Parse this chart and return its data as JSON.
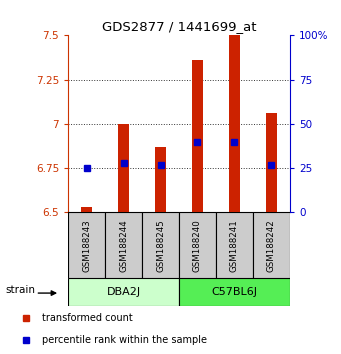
{
  "title": "GDS2877 / 1441699_at",
  "samples": [
    "GSM188243",
    "GSM188244",
    "GSM188245",
    "GSM188240",
    "GSM188241",
    "GSM188242"
  ],
  "group_labels": [
    "DBA2J",
    "C57BL6J"
  ],
  "transformed_counts": [
    6.53,
    7.0,
    6.87,
    7.36,
    7.5,
    7.06
  ],
  "percentile_ranks": [
    25,
    28,
    27,
    40,
    40,
    27
  ],
  "bar_bottom": 6.5,
  "ylim": [
    6.5,
    7.5
  ],
  "y_ticks": [
    6.5,
    6.75,
    7.0,
    7.25,
    7.5
  ],
  "y_tick_labels": [
    "6.5",
    "6.75",
    "7",
    "7.25",
    "7.5"
  ],
  "right_yticks": [
    0,
    25,
    50,
    75,
    100
  ],
  "right_ytick_labels": [
    "0",
    "25",
    "50",
    "75",
    "100%"
  ],
  "left_color": "#cc3300",
  "right_color": "#0000cc",
  "bar_color": "#cc2200",
  "percentile_color": "#0000cc",
  "bar_width": 0.28,
  "group1_color": "#ccffcc",
  "group2_color": "#55ee55",
  "sample_box_color": "#cccccc",
  "legend_red_label": "transformed count",
  "legend_blue_label": "percentile rank within the sample",
  "strain_label": "strain",
  "gridline_color": "#333333",
  "gridline_ticks": [
    6.75,
    7.0,
    7.25
  ]
}
